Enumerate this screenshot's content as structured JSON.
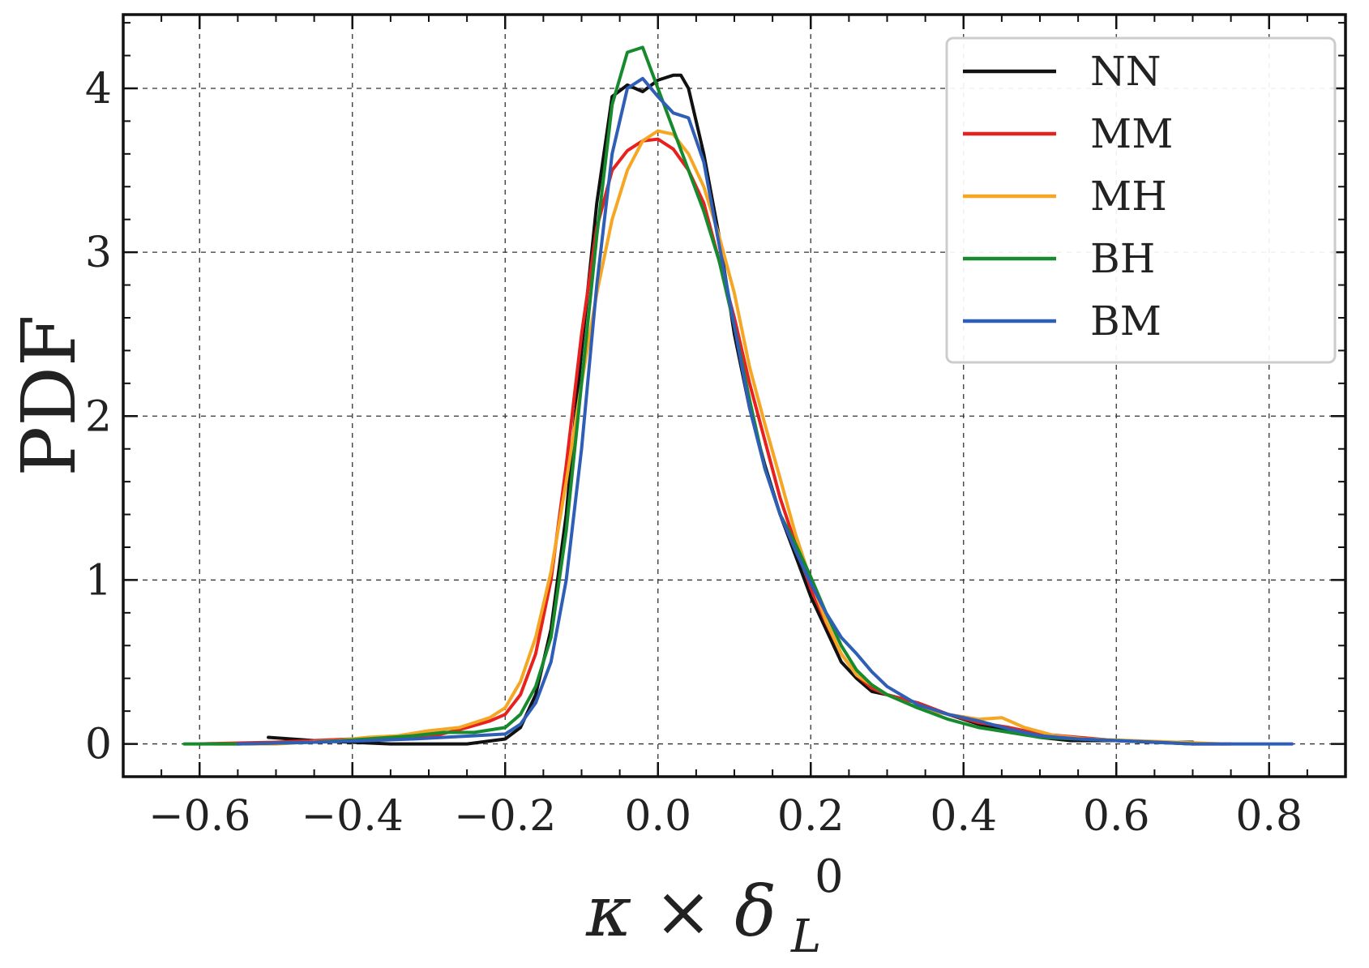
{
  "chart_data": {
    "type": "line",
    "title": "",
    "xlabel": "κ × δ_L^0",
    "xlabel_parts": {
      "main": "κ × δ",
      "sup": "0",
      "sub": "L"
    },
    "ylabel": "PDF",
    "xlim": [
      -0.7,
      0.9
    ],
    "ylim": [
      -0.2,
      4.45
    ],
    "grid": true,
    "legend_position": "top-right",
    "x_ticks": [
      -0.6,
      -0.4,
      -0.2,
      0.0,
      0.2,
      0.4,
      0.6,
      0.8
    ],
    "x_tick_labels": [
      "−0.6",
      "−0.4",
      "−0.2",
      "0.0",
      "0.2",
      "0.4",
      "0.6",
      "0.8"
    ],
    "y_ticks": [
      0,
      1,
      2,
      3,
      4
    ],
    "y_tick_labels": [
      "0",
      "1",
      "2",
      "3",
      "4"
    ],
    "series": [
      {
        "name": "NN",
        "color": "#111111",
        "x": [
          -0.51,
          -0.45,
          -0.35,
          -0.3,
          -0.25,
          -0.2,
          -0.18,
          -0.16,
          -0.14,
          -0.12,
          -0.1,
          -0.08,
          -0.06,
          -0.04,
          -0.02,
          0.0,
          0.02,
          0.03,
          0.04,
          0.06,
          0.08,
          0.1,
          0.12,
          0.14,
          0.16,
          0.18,
          0.2,
          0.22,
          0.24,
          0.26,
          0.28,
          0.3,
          0.34,
          0.38,
          0.42,
          0.46,
          0.5,
          0.54,
          0.6,
          0.65,
          0.7
        ],
        "y": [
          0.04,
          0.02,
          0.0,
          0.0,
          0.0,
          0.03,
          0.1,
          0.3,
          0.7,
          1.4,
          2.4,
          3.3,
          3.95,
          4.02,
          3.98,
          4.05,
          4.08,
          4.08,
          4.0,
          3.6,
          3.1,
          2.5,
          2.05,
          1.7,
          1.4,
          1.15,
          0.9,
          0.7,
          0.5,
          0.4,
          0.32,
          0.3,
          0.25,
          0.18,
          0.12,
          0.08,
          0.04,
          0.02,
          0.02,
          0.01,
          0.01
        ]
      },
      {
        "name": "MM",
        "color": "#e8211e",
        "x": [
          -0.6,
          -0.5,
          -0.4,
          -0.35,
          -0.3,
          -0.25,
          -0.22,
          -0.2,
          -0.18,
          -0.16,
          -0.14,
          -0.12,
          -0.1,
          -0.08,
          -0.06,
          -0.04,
          -0.02,
          0.0,
          0.02,
          0.04,
          0.06,
          0.08,
          0.1,
          0.12,
          0.14,
          0.16,
          0.18,
          0.2,
          0.22,
          0.24,
          0.26,
          0.28,
          0.3,
          0.34,
          0.38,
          0.42,
          0.46,
          0.5,
          0.55,
          0.6,
          0.65,
          0.7,
          0.75
        ],
        "y": [
          0.0,
          0.01,
          0.03,
          0.03,
          0.04,
          0.1,
          0.14,
          0.18,
          0.3,
          0.55,
          1.0,
          1.7,
          2.5,
          3.15,
          3.5,
          3.62,
          3.68,
          3.69,
          3.63,
          3.5,
          3.3,
          2.95,
          2.6,
          2.2,
          1.85,
          1.5,
          1.22,
          0.95,
          0.74,
          0.55,
          0.42,
          0.34,
          0.3,
          0.25,
          0.18,
          0.13,
          0.1,
          0.06,
          0.04,
          0.02,
          0.01,
          0.0,
          0.0
        ]
      },
      {
        "name": "MH",
        "color": "#f5a623",
        "x": [
          -0.58,
          -0.5,
          -0.42,
          -0.38,
          -0.34,
          -0.3,
          -0.26,
          -0.22,
          -0.2,
          -0.18,
          -0.16,
          -0.14,
          -0.12,
          -0.1,
          -0.08,
          -0.06,
          -0.04,
          -0.02,
          0.0,
          0.02,
          0.04,
          0.06,
          0.08,
          0.1,
          0.12,
          0.14,
          0.16,
          0.18,
          0.2,
          0.22,
          0.24,
          0.26,
          0.28,
          0.3,
          0.34,
          0.38,
          0.42,
          0.45,
          0.48,
          0.52,
          0.56,
          0.62,
          0.68,
          0.74
        ],
        "y": [
          0.0,
          0.0,
          0.02,
          0.04,
          0.05,
          0.08,
          0.1,
          0.16,
          0.22,
          0.38,
          0.65,
          1.05,
          1.6,
          2.2,
          2.75,
          3.2,
          3.5,
          3.68,
          3.74,
          3.72,
          3.6,
          3.4,
          3.1,
          2.75,
          2.3,
          1.95,
          1.62,
          1.28,
          1.0,
          0.75,
          0.55,
          0.42,
          0.36,
          0.3,
          0.22,
          0.18,
          0.15,
          0.16,
          0.1,
          0.05,
          0.03,
          0.02,
          0.01,
          0.0
        ]
      },
      {
        "name": "BH",
        "color": "#178a2e",
        "x": [
          -0.62,
          -0.55,
          -0.45,
          -0.38,
          -0.32,
          -0.28,
          -0.24,
          -0.2,
          -0.18,
          -0.16,
          -0.14,
          -0.12,
          -0.1,
          -0.08,
          -0.06,
          -0.04,
          -0.02,
          0.0,
          0.02,
          0.04,
          0.06,
          0.08,
          0.1,
          0.12,
          0.14,
          0.16,
          0.18,
          0.2,
          0.22,
          0.24,
          0.26,
          0.28,
          0.3,
          0.34,
          0.38,
          0.42,
          0.46,
          0.5,
          0.55,
          0.6,
          0.65,
          0.7
        ],
        "y": [
          0.0,
          0.0,
          0.01,
          0.03,
          0.05,
          0.07,
          0.07,
          0.1,
          0.18,
          0.35,
          0.65,
          1.3,
          2.2,
          3.1,
          3.9,
          4.22,
          4.25,
          4.0,
          3.75,
          3.5,
          3.25,
          2.95,
          2.55,
          2.1,
          1.68,
          1.4,
          1.22,
          1.02,
          0.8,
          0.6,
          0.45,
          0.36,
          0.3,
          0.22,
          0.15,
          0.1,
          0.07,
          0.04,
          0.03,
          0.02,
          0.01,
          0.0
        ]
      },
      {
        "name": "BM",
        "color": "#2f5eb7",
        "x": [
          -0.55,
          -0.45,
          -0.38,
          -0.32,
          -0.28,
          -0.24,
          -0.2,
          -0.18,
          -0.16,
          -0.14,
          -0.12,
          -0.1,
          -0.08,
          -0.06,
          -0.04,
          -0.02,
          0.0,
          0.02,
          0.04,
          0.06,
          0.08,
          0.1,
          0.12,
          0.14,
          0.16,
          0.18,
          0.2,
          0.22,
          0.24,
          0.26,
          0.28,
          0.3,
          0.34,
          0.38,
          0.42,
          0.46,
          0.5,
          0.55,
          0.6,
          0.65,
          0.7,
          0.75,
          0.83
        ],
        "y": [
          0.0,
          0.01,
          0.02,
          0.03,
          0.04,
          0.05,
          0.06,
          0.12,
          0.25,
          0.5,
          1.0,
          1.8,
          2.8,
          3.6,
          4.0,
          4.06,
          3.95,
          3.85,
          3.82,
          3.55,
          3.05,
          2.55,
          2.05,
          1.68,
          1.4,
          1.18,
          0.98,
          0.8,
          0.65,
          0.55,
          0.44,
          0.35,
          0.24,
          0.18,
          0.14,
          0.09,
          0.05,
          0.03,
          0.02,
          0.01,
          0.0,
          0.0,
          0.0
        ]
      }
    ]
  }
}
